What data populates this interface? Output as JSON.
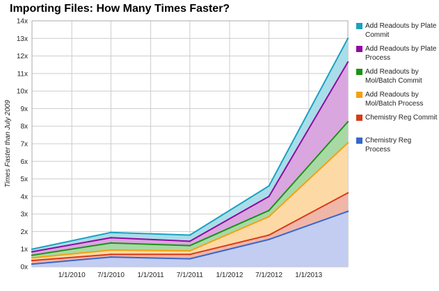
{
  "chart_data": {
    "type": "area",
    "title": "Importing Files: How Many Times Faster?",
    "xlabel": "",
    "ylabel": "Times Faster than July 2009",
    "x": [
      "7/1/2009",
      "7/1/2010",
      "7/1/2011",
      "7/1/2012",
      "7/1/2013"
    ],
    "x_ticks": [
      "1/1/2010",
      "7/1/2010",
      "1/1/2011",
      "7/1/2011",
      "1/1/2012",
      "7/1/2012",
      "1/1/2013"
    ],
    "y_ticks": [
      "0x",
      "1x",
      "2x",
      "3x",
      "4x",
      "5x",
      "6x",
      "7x",
      "8x",
      "9x",
      "10x",
      "11x",
      "12x",
      "13x",
      "14x"
    ],
    "ylim": [
      0,
      14
    ],
    "grid": true,
    "legend_position": "right",
    "stacked": false,
    "series": [
      {
        "name": "Add Readouts by Plate Commit",
        "color": "#1aa1c0",
        "fill": "#a9dde9",
        "values": [
          1.0,
          1.95,
          1.8,
          4.6,
          13.0
        ]
      },
      {
        "name": "Add Readouts by Plate Process",
        "color": "#8e0b9e",
        "fill": "#d9a6df",
        "values": [
          0.85,
          1.65,
          1.45,
          4.0,
          11.65
        ]
      },
      {
        "name": "Add Readouts by Mol/Batch Commit",
        "color": "#1a9316",
        "fill": "#a8d9a4",
        "values": [
          0.65,
          1.35,
          1.2,
          3.2,
          8.25
        ]
      },
      {
        "name": "Add Readouts by Mol/Batch Process",
        "color": "#f5a00f",
        "fill": "#fdd9a5",
        "values": [
          0.5,
          0.95,
          0.9,
          2.85,
          7.05
        ]
      },
      {
        "name": "Chemistry Reg Commit",
        "color": "#d83a17",
        "fill": "#f0b6a8",
        "values": [
          0.35,
          0.7,
          0.7,
          1.8,
          4.2
        ]
      },
      {
        "name": "Chemistry Reg Process",
        "color": "#3766cc",
        "fill": "#c2cdf1",
        "values": [
          0.15,
          0.55,
          0.45,
          1.55,
          3.15
        ]
      }
    ]
  }
}
